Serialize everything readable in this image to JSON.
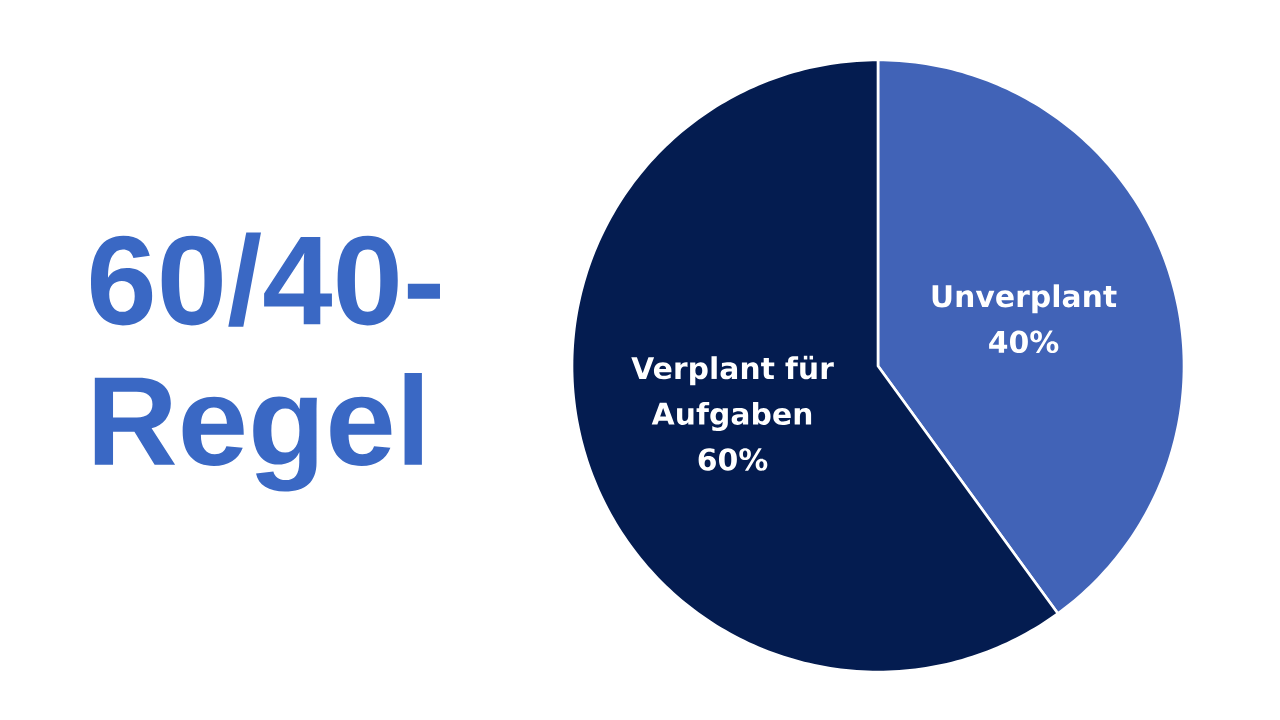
{
  "chart_data": {
    "type": "pie",
    "title": "60/40-Regel",
    "categories": [
      "Unverplant",
      "Verplant für Aufgaben"
    ],
    "values": [
      40,
      60
    ],
    "colors": [
      "#4163b7",
      "#041c50"
    ],
    "value_labels": [
      "40%",
      "60%"
    ]
  }
}
